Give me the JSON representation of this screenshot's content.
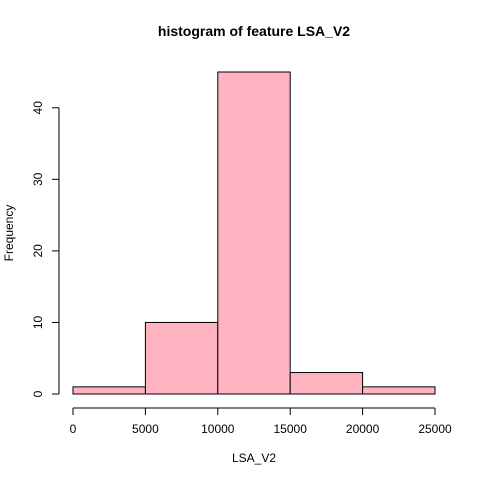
{
  "chart_data": {
    "type": "bar",
    "title": "histogram of feature LSA_V2",
    "xlabel": "LSA_V2",
    "ylabel": "Frequency",
    "bins": [
      {
        "start": 0,
        "end": 5000,
        "count": 1
      },
      {
        "start": 5000,
        "end": 10000,
        "count": 10
      },
      {
        "start": 10000,
        "end": 15000,
        "count": 45
      },
      {
        "start": 15000,
        "end": 20000,
        "count": 3
      },
      {
        "start": 20000,
        "end": 25000,
        "count": 1
      }
    ],
    "xlim": [
      0,
      25000
    ],
    "ylim": [
      0,
      45
    ],
    "x_ticks": [
      0,
      5000,
      10000,
      15000,
      20000,
      25000
    ],
    "y_ticks": [
      0,
      10,
      20,
      30,
      40
    ],
    "bar_color": "#ffb3c1",
    "grid": false,
    "legend": "none"
  }
}
